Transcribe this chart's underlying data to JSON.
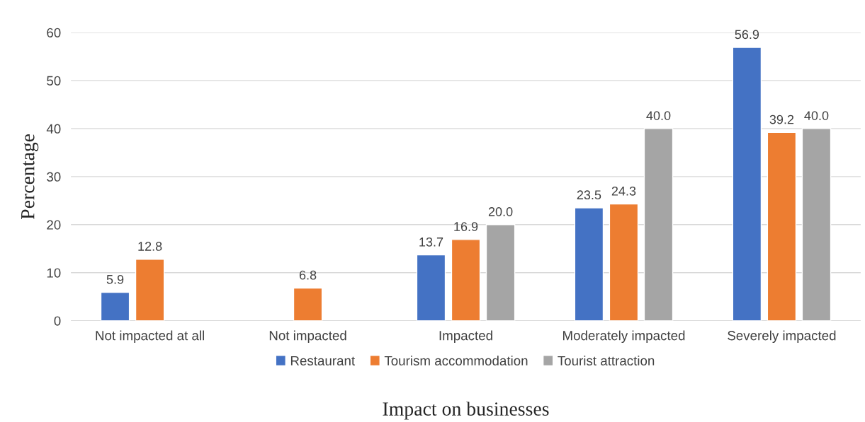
{
  "chart_data": {
    "type": "bar",
    "xlabel": "Impact on businesses",
    "ylabel": "Percentage",
    "categories": [
      "Not impacted at all",
      "Not impacted",
      "Impacted",
      "Moderately impacted",
      "Severely impacted"
    ],
    "series": [
      {
        "name": "Restaurant",
        "color": "#4472c4",
        "values": [
          5.9,
          null,
          13.7,
          23.5,
          56.9
        ],
        "value_labels": [
          "5.9",
          null,
          "13.7",
          "23.5",
          "56.9"
        ]
      },
      {
        "name": "Tourism accommodation",
        "color": "#ed7d31",
        "values": [
          12.8,
          6.8,
          16.9,
          24.3,
          39.2
        ],
        "value_labels": [
          "12.8",
          "6.8",
          "16.9",
          "24.3",
          "39.2"
        ]
      },
      {
        "name": "Tourist attraction",
        "color": "#a5a5a5",
        "values": [
          null,
          null,
          20,
          40,
          40
        ],
        "value_labels": [
          null,
          null,
          "20.0",
          "40.0",
          "40.0"
        ]
      }
    ],
    "ylim": [
      0,
      60
    ],
    "yticks": [
      0,
      10,
      20,
      30,
      40,
      50,
      60
    ],
    "grid": "y",
    "legend": "bottom"
  }
}
